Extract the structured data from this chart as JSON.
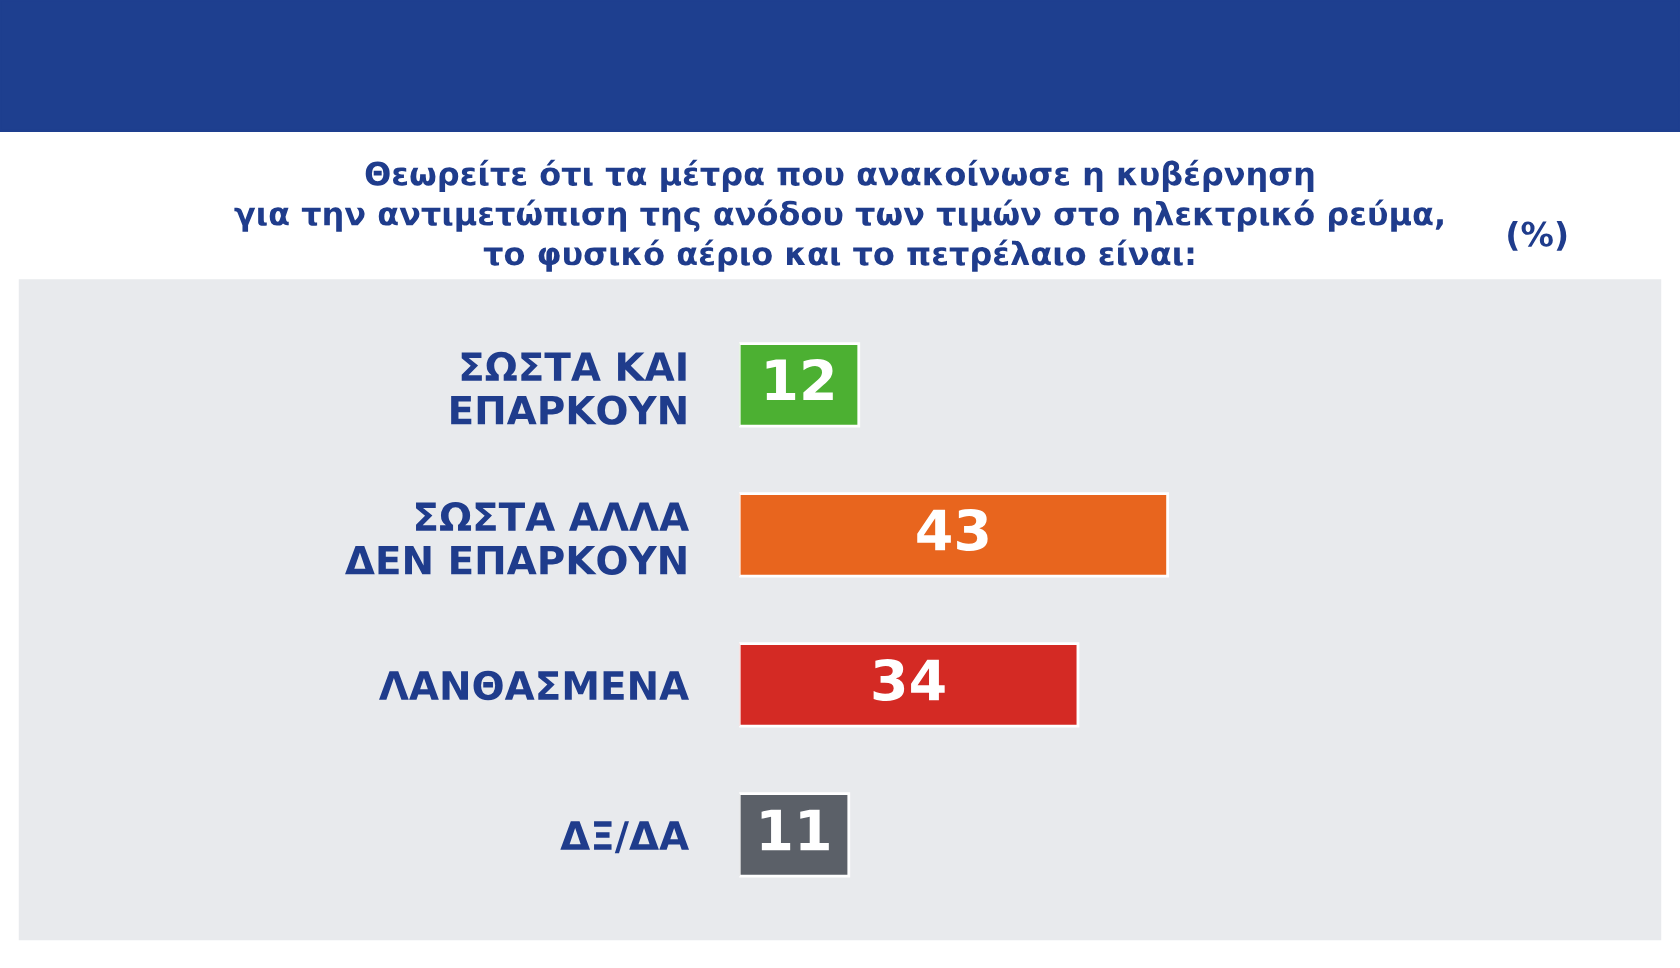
{
  "chart_data": {
    "type": "bar",
    "orientation": "horizontal",
    "title": "Θεωρείτε ότι τα μέτρα που ανακοίνωσε η κυβέρνηση\nγια την αντιμετώπιση της ανόδου των τιμών στο ηλεκτρικό ρεύμα,\nτο φυσικό αέριο και το πετρέλαιο είναι:",
    "annotations": [
      "(%)"
    ],
    "categories": [
      "ΣΩΣΤΑ ΚΑΙ\nΕΠΑΡΚΟΥΝ",
      "ΣΩΣΤΑ ΑΛΛΑ\nΔΕΝ ΕΠΑΡΚΟΥΝ",
      "ΛΑΝΘΑΣΜΕΝΑ",
      "ΔΞ/ΔΑ"
    ],
    "values": [
      12,
      43,
      34,
      11
    ],
    "colors": [
      "#4cb032",
      "#e8651e",
      "#d42a24",
      "#5b6068"
    ],
    "data_labels": true,
    "grid": false,
    "legend": false
  }
}
